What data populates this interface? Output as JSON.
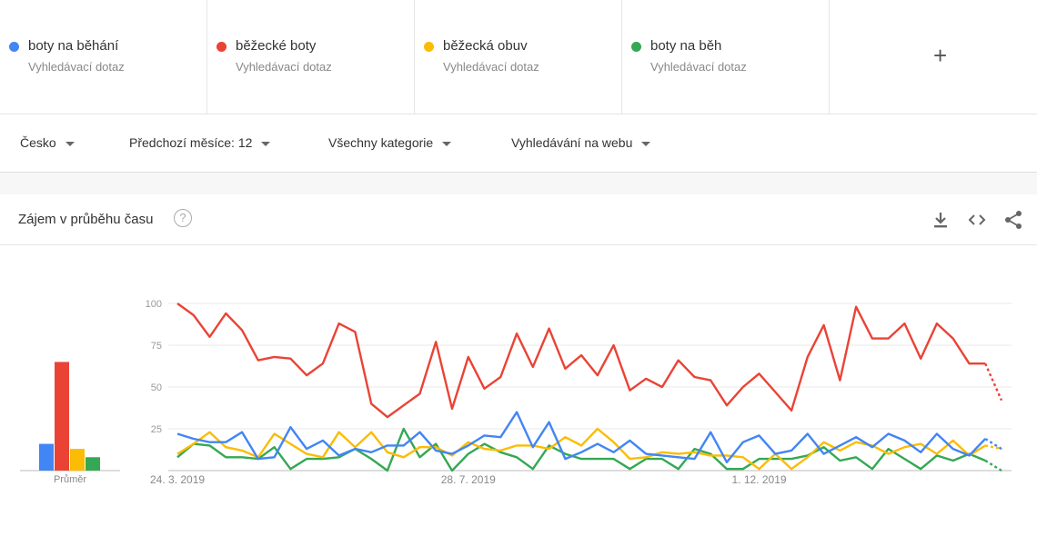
{
  "terms": [
    {
      "label": "boty na běhání",
      "sublabel": "Vyhledávací dotaz",
      "color": "#4285F4"
    },
    {
      "label": "běžecké boty",
      "sublabel": "Vyhledávací dotaz",
      "color": "#EA4335"
    },
    {
      "label": "běžecká obuv",
      "sublabel": "Vyhledávací dotaz",
      "color": "#FBBC04"
    },
    {
      "label": "boty na běh",
      "sublabel": "Vyhledávací dotaz",
      "color": "#34A853"
    }
  ],
  "add_icon": "+",
  "filters": {
    "region": "Česko",
    "period": "Předchozí měsíce: 12",
    "category": "Všechny kategorie",
    "search_type": "Vyhledávání na webu"
  },
  "card": {
    "title": "Zájem v průběhu času",
    "help_icon": "?",
    "icons": [
      "download-icon",
      "embed-code-icon",
      "share-icon"
    ]
  },
  "chart_data": {
    "type": "line",
    "y_ticks": [
      "100",
      "75",
      "50",
      "25"
    ],
    "ylim": [
      0,
      100
    ],
    "x_tick_labels": [
      "24. 3. 2019",
      "28. 7. 2019",
      "1. 12. 2019"
    ],
    "average_label": "Průměr",
    "averages": [
      16,
      65,
      13,
      8
    ],
    "series": [
      {
        "name": "boty na běhání",
        "color": "#4285F4",
        "values": [
          22,
          19,
          17,
          17,
          23,
          7,
          8,
          26,
          13,
          18,
          9,
          13,
          11,
          15,
          15,
          23,
          12,
          10,
          15,
          21,
          20,
          35,
          14,
          29,
          7,
          11,
          16,
          11,
          18,
          10,
          9,
          8,
          7,
          23,
          5,
          17,
          21,
          10,
          12,
          22,
          10,
          15,
          20,
          14,
          22,
          18,
          11,
          22,
          13,
          9,
          19,
          13
        ]
      },
      {
        "name": "běžecké boty",
        "color": "#EA4335",
        "values": [
          100,
          93,
          80,
          94,
          84,
          66,
          68,
          67,
          57,
          64,
          88,
          83,
          40,
          32,
          39,
          46,
          77,
          37,
          68,
          49,
          56,
          82,
          62,
          85,
          61,
          69,
          57,
          75,
          48,
          55,
          50,
          66,
          56,
          54,
          39,
          50,
          58,
          47,
          36,
          68,
          87,
          54,
          98,
          79,
          79,
          88,
          67,
          88,
          79,
          64,
          64,
          42
        ]
      },
      {
        "name": "běžecká obuv",
        "color": "#FBBC04",
        "values": [
          10,
          16,
          23,
          14,
          12,
          8,
          22,
          16,
          10,
          8,
          23,
          14,
          23,
          11,
          8,
          14,
          14,
          9,
          17,
          13,
          12,
          15,
          15,
          13,
          20,
          15,
          25,
          17,
          7,
          8,
          11,
          10,
          11,
          9,
          9,
          8,
          1,
          10,
          1,
          8,
          17,
          12,
          17,
          15,
          10,
          14,
          16,
          10,
          18,
          9,
          15,
          13
        ]
      },
      {
        "name": "boty na běh",
        "color": "#34A853",
        "values": [
          8,
          16,
          15,
          8,
          8,
          7,
          14,
          1,
          7,
          7,
          8,
          13,
          7,
          0,
          25,
          8,
          16,
          0,
          10,
          16,
          11,
          8,
          1,
          15,
          10,
          7,
          7,
          7,
          1,
          7,
          7,
          1,
          13,
          10,
          1,
          1,
          7,
          7,
          7,
          9,
          14,
          6,
          8,
          1,
          13,
          7,
          1,
          9,
          6,
          10,
          6,
          0
        ]
      }
    ]
  }
}
